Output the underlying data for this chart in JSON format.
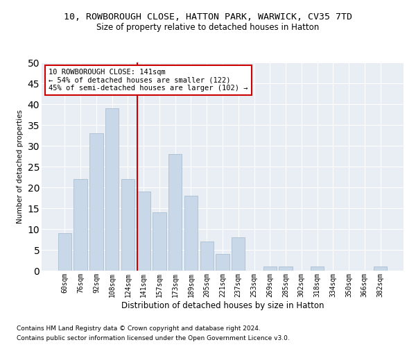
{
  "title1": "10, ROWBOROUGH CLOSE, HATTON PARK, WARWICK, CV35 7TD",
  "title2": "Size of property relative to detached houses in Hatton",
  "xlabel": "Distribution of detached houses by size in Hatton",
  "ylabel": "Number of detached properties",
  "categories": [
    "60sqm",
    "76sqm",
    "92sqm",
    "108sqm",
    "124sqm",
    "141sqm",
    "157sqm",
    "173sqm",
    "189sqm",
    "205sqm",
    "221sqm",
    "237sqm",
    "253sqm",
    "269sqm",
    "285sqm",
    "302sqm",
    "318sqm",
    "334sqm",
    "350sqm",
    "366sqm",
    "382sqm"
  ],
  "values": [
    9,
    22,
    33,
    39,
    22,
    19,
    14,
    28,
    18,
    7,
    4,
    8,
    0,
    1,
    1,
    0,
    1,
    0,
    0,
    0,
    1
  ],
  "bar_color": "#c8d8e8",
  "bar_edge_color": "#a0b8cc",
  "vline_color": "#cc0000",
  "annotation_text": "10 ROWBOROUGH CLOSE: 141sqm\n← 54% of detached houses are smaller (122)\n45% of semi-detached houses are larger (102) →",
  "annotation_box_color": "#ffffff",
  "annotation_box_edge": "#cc0000",
  "ylim": [
    0,
    50
  ],
  "yticks": [
    0,
    5,
    10,
    15,
    20,
    25,
    30,
    35,
    40,
    45,
    50
  ],
  "background_color": "#e8eef4",
  "footer1": "Contains HM Land Registry data © Crown copyright and database right 2024.",
  "footer2": "Contains public sector information licensed under the Open Government Licence v3.0.",
  "title1_fontsize": 9.5,
  "title2_fontsize": 8.5,
  "xlabel_fontsize": 8.5,
  "ylabel_fontsize": 7.5,
  "tick_fontsize": 7,
  "annotation_fontsize": 7.5,
  "footer_fontsize": 6.5
}
